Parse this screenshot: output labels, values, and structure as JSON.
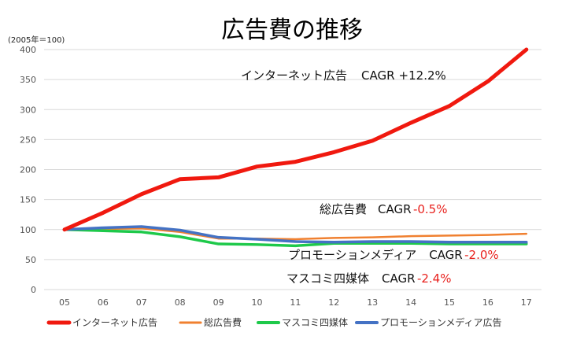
{
  "chart_data": {
    "type": "line",
    "title": "広告費の推移",
    "unit_label": "(2005年＝100)",
    "categories": [
      "05",
      "06",
      "07",
      "08",
      "09",
      "10",
      "11",
      "12",
      "13",
      "14",
      "15",
      "16",
      "17"
    ],
    "ylim": [
      0,
      400
    ],
    "yticks": [
      0,
      50,
      100,
      150,
      200,
      250,
      300,
      350,
      400
    ],
    "grid": true,
    "legend_position": "bottom",
    "series": [
      {
        "name": "インターネット広告",
        "color": "#f0190f",
        "values": [
          100,
          128,
          159,
          184,
          187,
          205,
          213,
          229,
          248,
          278,
          306,
          347,
          400
        ]
      },
      {
        "name": "総広告費",
        "color": "#f08030",
        "values": [
          100,
          101,
          102,
          96,
          85,
          85,
          84,
          86,
          87,
          89,
          90,
          91,
          93
        ]
      },
      {
        "name": "マスコミ四媒体",
        "color": "#1ec94a",
        "values": [
          100,
          98,
          96,
          88,
          76,
          75,
          73,
          77,
          77,
          77,
          76,
          76,
          76
        ]
      },
      {
        "name": "プロモーションメディア広告",
        "color": "#4472c4",
        "values": [
          100,
          103,
          105,
          99,
          87,
          84,
          80,
          79,
          80,
          80,
          79,
          79,
          79
        ]
      }
    ],
    "annotations": [
      {
        "label": "インターネット広告",
        "cagr_prefix": "CAGR",
        "cagr_value": "+12.2%",
        "negative": false
      },
      {
        "label": "総広告費",
        "cagr_prefix": "CAGR",
        "cagr_value": "-0.5%",
        "negative": true
      },
      {
        "label": "プロモーションメディア",
        "cagr_prefix": "CAGR",
        "cagr_value": "-2.0%",
        "negative": true
      },
      {
        "label": "マスコミ四媒体",
        "cagr_prefix": "CAGR",
        "cagr_value": "-2.4%",
        "negative": true
      }
    ]
  }
}
